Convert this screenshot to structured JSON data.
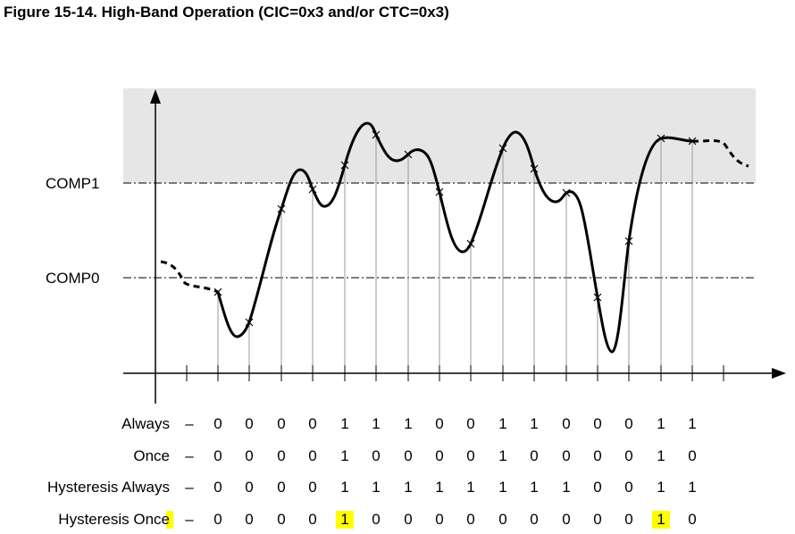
{
  "figure": {
    "title": "Figure 15-14. High-Band Operation (CIC=0x3 and/or CTC=0x3)"
  },
  "thresholds": {
    "comp1_label": "COMP1",
    "comp0_label": "COMP0",
    "high_band_color": "#e6e6e6"
  },
  "table": {
    "separator": "–",
    "highlight_color": "#ffff00",
    "rows": [
      {
        "label": "Always",
        "label_highlighted": false,
        "values": [
          "0",
          "0",
          "0",
          "0",
          "1",
          "1",
          "1",
          "0",
          "0",
          "1",
          "1",
          "0",
          "0",
          "0",
          "1",
          "1"
        ],
        "highlight_index": []
      },
      {
        "label": "Once",
        "label_highlighted": false,
        "values": [
          "0",
          "0",
          "0",
          "0",
          "1",
          "0",
          "0",
          "0",
          "0",
          "1",
          "0",
          "0",
          "0",
          "0",
          "1",
          "0"
        ],
        "highlight_index": []
      },
      {
        "label": "Hysteresis Always",
        "label_highlighted": false,
        "values": [
          "0",
          "0",
          "0",
          "0",
          "1",
          "1",
          "1",
          "1",
          "1",
          "1",
          "1",
          "1",
          "0",
          "0",
          "1",
          "1"
        ],
        "highlight_index": []
      },
      {
        "label": "Hysteresis Once",
        "label_highlighted": true,
        "values": [
          "0",
          "0",
          "0",
          "0",
          "1",
          "0",
          "0",
          "0",
          "0",
          "0",
          "0",
          "0",
          "0",
          "0",
          "1",
          "0"
        ],
        "highlight_index": [
          4,
          14
        ]
      }
    ]
  }
}
